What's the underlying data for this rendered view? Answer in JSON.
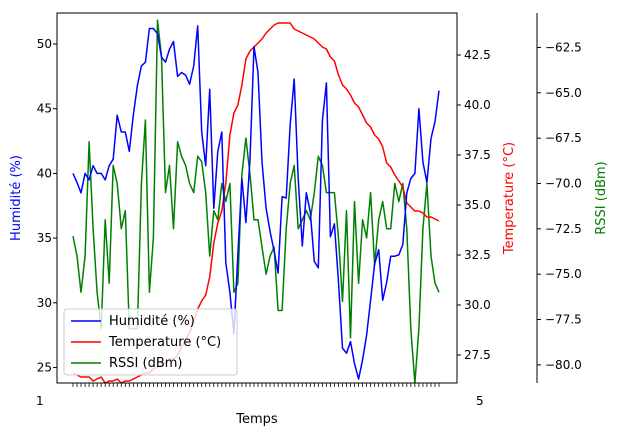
{
  "chart_data": {
    "type": "line",
    "xlabel": "Temps",
    "x_tick_labels_overlap_left": "1",
    "x_tick_labels_overlap_right": "5",
    "axes": {
      "left": {
        "label": "Humidité (%)",
        "color": "#0000ff",
        "ylim": [
          23.8,
          52.4
        ],
        "ticks": [
          25,
          30,
          35,
          40,
          45,
          50
        ]
      },
      "right": {
        "label": "Temperature (°C)",
        "color": "#ff0000",
        "ylim": [
          26.1,
          44.6
        ],
        "ticks": [
          27.5,
          30.0,
          32.5,
          35.0,
          37.5,
          40.0,
          42.5
        ]
      },
      "outer": {
        "label": "RSSI (dBm)",
        "color": "#008000",
        "ylim": [
          -81.0,
          -60.6
        ],
        "ticks": [
          -62.5,
          -65.0,
          -67.5,
          -70.0,
          -72.5,
          -75.0,
          -77.5,
          -80.0
        ]
      }
    },
    "legend": {
      "placement": "lower-left"
    },
    "series": [
      {
        "name": "Humidité (%)",
        "axis": "left",
        "color": "#0000ff",
        "values": [
          40.0,
          39.3,
          38.5,
          40.0,
          39.5,
          40.6,
          40.0,
          40.0,
          39.5,
          40.6,
          41.1,
          44.5,
          43.2,
          43.2,
          41.7,
          44.5,
          46.8,
          48.3,
          48.6,
          51.2,
          51.2,
          50.8,
          49.0,
          48.6,
          49.6,
          50.2,
          47.5,
          47.8,
          47.6,
          46.9,
          48.3,
          51.4,
          43.2,
          40.6,
          46.5,
          37.3,
          41.7,
          43.2,
          33.1,
          30.8,
          27.6,
          33.8,
          39.6,
          36.2,
          41.1,
          49.8,
          47.8,
          40.9,
          37.3,
          35.5,
          34.0,
          32.3,
          38.2,
          38.1,
          43.8,
          47.3,
          39.6,
          34.4,
          38.5,
          37.0,
          33.2,
          32.7,
          44.1,
          47.0,
          35.1,
          36.1,
          31.6,
          26.5,
          26.1,
          27.0,
          25.3,
          24.1,
          25.6,
          27.5,
          30.2,
          33.0,
          34.1,
          30.2,
          31.6,
          33.6,
          33.6,
          33.7,
          34.5,
          38.5,
          39.6,
          40.0,
          45.0,
          40.9,
          39.3,
          42.7,
          44.0,
          46.4
        ]
      },
      {
        "name": "Temperature (°C)",
        "axis": "right",
        "color": "#ff0000",
        "values": [
          26.6,
          26.5,
          26.4,
          26.4,
          26.4,
          26.2,
          26.3,
          26.4,
          26.1,
          26.2,
          26.2,
          26.3,
          26.1,
          26.2,
          26.2,
          26.3,
          26.4,
          26.5,
          26.6,
          26.6,
          26.8,
          26.9,
          27.0,
          27.1,
          27.3,
          27.3,
          27.5,
          27.9,
          28.3,
          28.6,
          29.2,
          29.8,
          30.2,
          30.5,
          31.4,
          33.1,
          34.1,
          34.7,
          36.1,
          38.5,
          39.6,
          40.0,
          41.0,
          42.3,
          42.7,
          42.9,
          43.1,
          43.3,
          43.6,
          43.8,
          44.0,
          44.1,
          44.1,
          44.1,
          44.1,
          43.8,
          43.7,
          43.6,
          43.5,
          43.4,
          43.3,
          43.1,
          42.9,
          42.8,
          42.4,
          42.2,
          41.5,
          41.0,
          40.8,
          40.5,
          40.1,
          39.9,
          39.5,
          39.1,
          38.9,
          38.5,
          38.3,
          37.9,
          37.1,
          36.9,
          36.5,
          36.2,
          35.9,
          35.1,
          34.9,
          34.7,
          34.7,
          34.6,
          34.4,
          34.4,
          34.3,
          34.2
        ]
      },
      {
        "name": "RSSI (dBm)",
        "axis": "outer",
        "color": "#008000",
        "values": [
          -72.9,
          -74.0,
          -76.0,
          -74.0,
          -67.7,
          -72.5,
          -76.0,
          -78.0,
          -72.0,
          -75.5,
          -69.0,
          -70.0,
          -72.5,
          -71.5,
          -78.0,
          -78.0,
          -78.0,
          -70.0,
          -66.5,
          -76.0,
          -73.0,
          -61.0,
          -63.0,
          -70.5,
          -69.0,
          -72.5,
          -67.7,
          -68.5,
          -69.0,
          -70.0,
          -70.5,
          -68.5,
          -68.8,
          -70.5,
          -74.0,
          -71.5,
          -72.0,
          -70.0,
          -71.0,
          -70.0,
          -76.0,
          -75.5,
          -69.5,
          -67.5,
          -69.5,
          -72.0,
          -72.0,
          -73.5,
          -75.0,
          -74.0,
          -73.5,
          -77.0,
          -77.0,
          -72.5,
          -70.0,
          -69.0,
          -72.5,
          -72.0,
          -71.5,
          -72.0,
          -70.5,
          -68.5,
          -69.0,
          -70.5,
          -70.5,
          -70.5,
          -73.0,
          -76.5,
          -71.5,
          -78.5,
          -71.0,
          -75.5,
          -72.0,
          -73.0,
          -70.5,
          -74.5,
          -72.0,
          -71.0,
          -72.5,
          -72.5,
          -70.0,
          -71.0,
          -70.0,
          -72.5,
          -78.0,
          -81.0,
          -78.0,
          -72.5,
          -70.0,
          -74.0,
          -75.5,
          -76.0
        ]
      }
    ]
  }
}
